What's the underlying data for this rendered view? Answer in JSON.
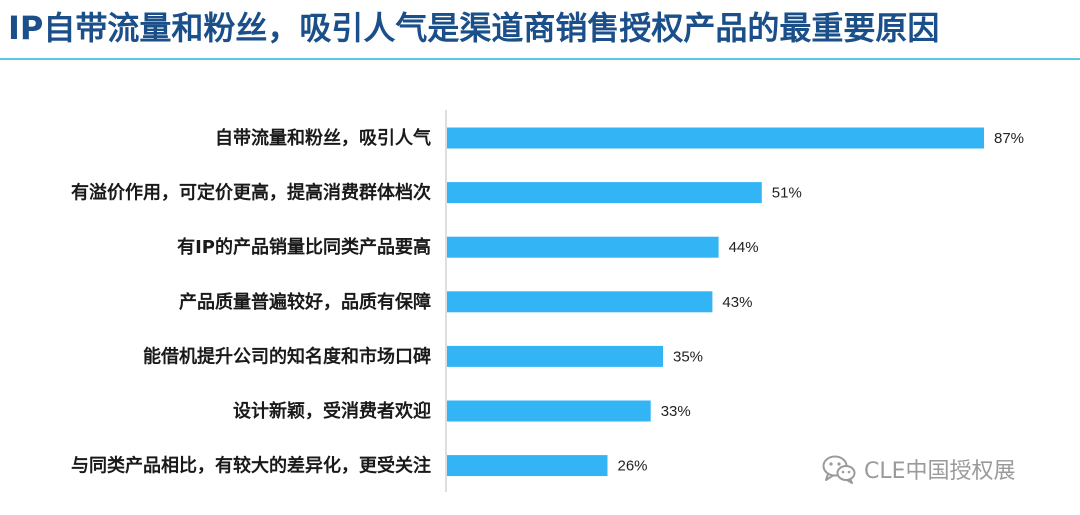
{
  "header": {
    "title": "IP自带流量和粉丝，吸引人气是渠道商销售授权产品的最重要原因"
  },
  "chart_data": {
    "type": "bar",
    "orientation": "horizontal",
    "categories": [
      "自带流量和粉丝，吸引人气",
      "有溢价作用，可定价更高，提高消费群体档次",
      "有IP的产品销量比同类产品要高",
      "产品质量普遍较好，品质有保障",
      "能借机提升公司的知名度和市场口碑",
      "设计新颖，受消费者欢迎",
      "与同类产品相比，有较大的差异化，更受关注"
    ],
    "values": [
      87,
      51,
      44,
      43,
      35,
      33,
      26
    ],
    "value_labels": [
      "87%",
      "51%",
      "44%",
      "43%",
      "35%",
      "33%",
      "26%"
    ],
    "unit": "%",
    "xlim": [
      0,
      100
    ],
    "bar_color": "#33b5f5",
    "grid": false
  },
  "watermark": {
    "text": "CLE中国授权展",
    "icon": "wechat-icon"
  }
}
